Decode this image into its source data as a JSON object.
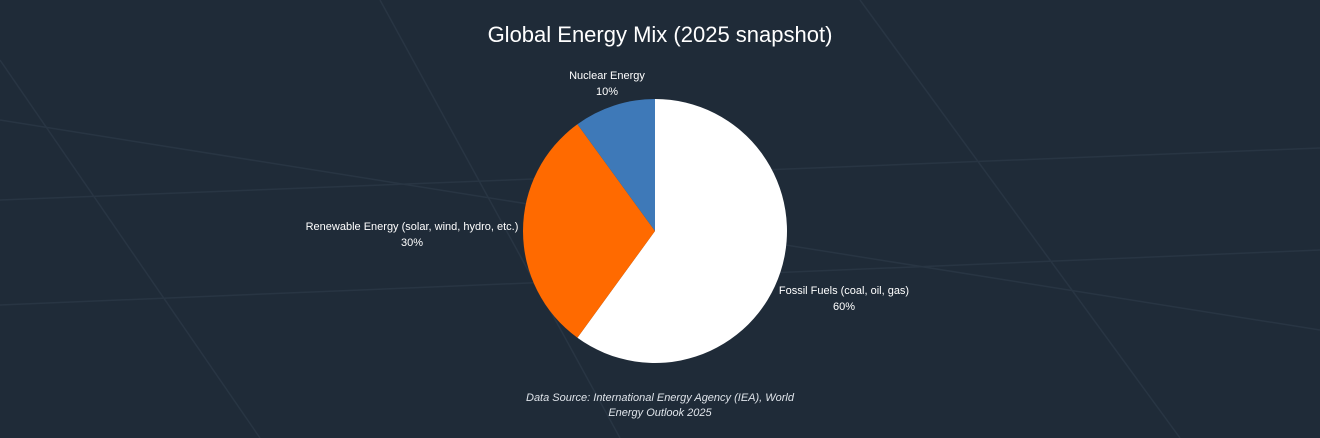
{
  "chart_data": {
    "type": "pie",
    "title": "Global Energy Mix (2025 snapshot)",
    "slices": [
      {
        "label": "Fossil Fuels (coal, oil, gas)",
        "value": 60,
        "pct_label": "60%",
        "color": "#ffffff"
      },
      {
        "label": "Renewable Energy (solar, wind, hydro, etc.)",
        "value": 30,
        "pct_label": "30%",
        "color": "#ff6a00"
      },
      {
        "label": "Nuclear Energy",
        "value": 10,
        "pct_label": "10%",
        "color": "#3e79b8"
      }
    ],
    "start_angle_deg": 0,
    "direction": "clockwise",
    "source": "Data Source: International Energy Agency (IEA), World Energy Outlook 2025"
  },
  "theme": {
    "background": "#1f2b38"
  }
}
